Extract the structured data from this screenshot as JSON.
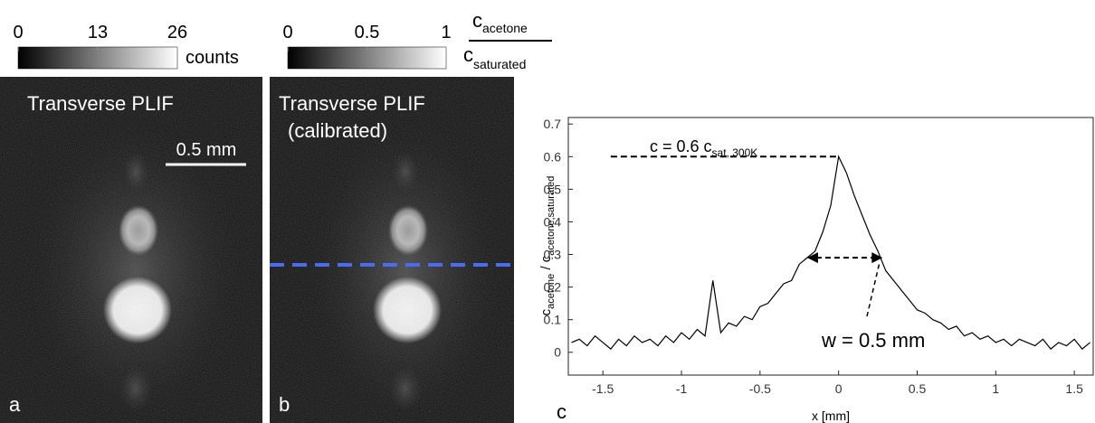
{
  "panels": [
    {
      "label": "a",
      "title": "Transverse PLIF",
      "scale_bar": "0.5 mm",
      "colorbar": {
        "lim": [
          0,
          26
        ],
        "ticks": [
          0,
          13,
          26
        ],
        "unit": "counts"
      }
    },
    {
      "label": "b",
      "title": "Transverse PLIF",
      "subtitle": "(calibrated)",
      "colorbar": {
        "lim": [
          0,
          1
        ],
        "ticks": [
          0,
          0.5,
          1
        ],
        "unit_numerator": "c",
        "unit_numerator_sub": "acetone",
        "unit_denominator": "c",
        "unit_denominator_sub": "saturated"
      }
    }
  ],
  "chart_data": {
    "type": "line",
    "label": "c",
    "x_label": "x [mm]",
    "y_label": [
      "c",
      "acetone",
      " / c",
      "acetone,saturated"
    ],
    "x": [
      -1.7,
      -1.65,
      -1.6,
      -1.55,
      -1.5,
      -1.45,
      -1.4,
      -1.35,
      -1.3,
      -1.25,
      -1.2,
      -1.15,
      -1.1,
      -1.05,
      -1.0,
      -0.95,
      -0.9,
      -0.85,
      -0.8,
      -0.75,
      -0.7,
      -0.65,
      -0.6,
      -0.55,
      -0.5,
      -0.45,
      -0.4,
      -0.35,
      -0.3,
      -0.25,
      -0.2,
      -0.15,
      -0.1,
      -0.05,
      0,
      0.05,
      0.1,
      0.15,
      0.2,
      0.25,
      0.3,
      0.35,
      0.4,
      0.45,
      0.5,
      0.55,
      0.6,
      0.65,
      0.7,
      0.75,
      0.8,
      0.85,
      0.9,
      0.95,
      1.0,
      1.05,
      1.1,
      1.15,
      1.2,
      1.25,
      1.3,
      1.35,
      1.4,
      1.45,
      1.5,
      1.55,
      1.6
    ],
    "values": [
      0.03,
      0.04,
      0.02,
      0.05,
      0.03,
      0.01,
      0.04,
      0.02,
      0.05,
      0.03,
      0.04,
      0.02,
      0.05,
      0.03,
      0.06,
      0.04,
      0.07,
      0.05,
      0.22,
      0.06,
      0.09,
      0.08,
      0.11,
      0.1,
      0.14,
      0.15,
      0.18,
      0.21,
      0.22,
      0.27,
      0.29,
      0.31,
      0.37,
      0.45,
      0.6,
      0.55,
      0.48,
      0.42,
      0.36,
      0.31,
      0.25,
      0.22,
      0.19,
      0.16,
      0.13,
      0.12,
      0.1,
      0.09,
      0.07,
      0.08,
      0.05,
      0.06,
      0.04,
      0.05,
      0.03,
      0.04,
      0.02,
      0.04,
      0.03,
      0.02,
      0.04,
      0.01,
      0.03,
      0.02,
      0.04,
      0.01,
      0.03
    ],
    "color": "#000000",
    "xlim": [
      -1.72,
      1.62
    ],
    "xticks": [
      -1.5,
      -1,
      -0.5,
      0,
      0.5,
      1,
      1.5
    ],
    "ylim": [
      -0.07,
      0.72
    ],
    "yticks": [
      0,
      0.1,
      0.2,
      0.3,
      0.4,
      0.5,
      0.6,
      0.7
    ],
    "annotation_peak": "c = 0.6 c",
    "annotation_peak_sub": "sat, 300K",
    "peak_line": {
      "y": 0.6,
      "x": [
        -1.45,
        0
      ]
    },
    "annotation_width": "w = 0.5 mm",
    "width_arrow": {
      "y": 0.29,
      "x": [
        -0.2,
        0.28
      ]
    }
  }
}
